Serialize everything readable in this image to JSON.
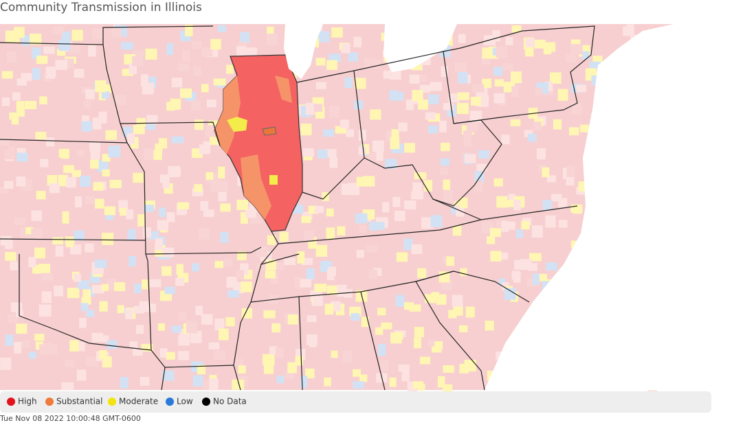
{
  "header": {
    "title": "Community Transmission in Illinois"
  },
  "legend": [
    {
      "label": "High",
      "color": "#e3131b"
    },
    {
      "label": "Substantial",
      "color": "#ee7a3c"
    },
    {
      "label": "Moderate",
      "color": "#f3e40f"
    },
    {
      "label": "Low",
      "color": "#2a7ad8"
    },
    {
      "label": "No Data",
      "color": "#000000"
    }
  ],
  "footer": {
    "timestamp": "Tue Nov 08 2022 10:00:48 GMT-0600"
  }
}
